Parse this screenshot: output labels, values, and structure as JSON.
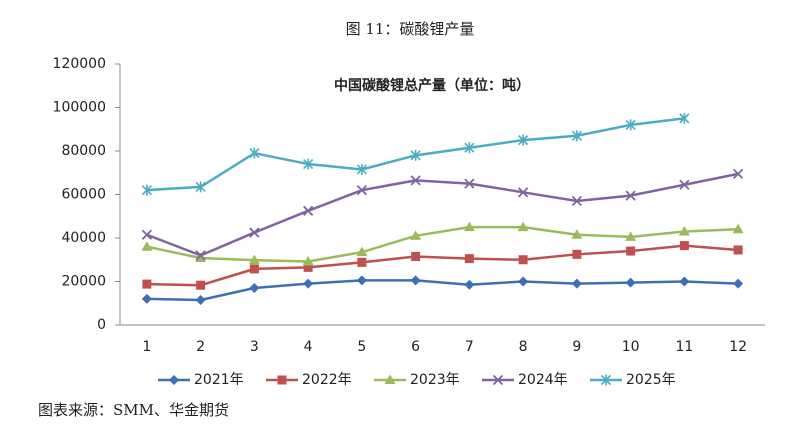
{
  "figure_title": "图 11：碳酸锂产量",
  "source": "图表来源：SMM、华金期货",
  "chart_data": {
    "type": "line",
    "title": "中国碳酸锂总产量（单位：吨）",
    "categories": [
      "1",
      "2",
      "3",
      "4",
      "5",
      "6",
      "7",
      "8",
      "9",
      "10",
      "11",
      "12"
    ],
    "series": [
      {
        "name": "2021年",
        "color": "#3d6fb6",
        "marker": "diamond",
        "values": [
          12000,
          11500,
          17000,
          19000,
          20500,
          20500,
          18500,
          20000,
          19000,
          19500,
          20000,
          19000
        ]
      },
      {
        "name": "2022年",
        "color": "#c0504d",
        "marker": "square",
        "values": [
          18800,
          18300,
          25800,
          26500,
          28800,
          31500,
          30500,
          30000,
          32500,
          34000,
          36500,
          34500
        ]
      },
      {
        "name": "2023年",
        "color": "#9bbb59",
        "marker": "triangle",
        "values": [
          36000,
          30800,
          29800,
          29200,
          33500,
          41000,
          45000,
          45000,
          41500,
          40500,
          43000,
          44000
        ]
      },
      {
        "name": "2024年",
        "color": "#8064a2",
        "marker": "x",
        "values": [
          41500,
          32000,
          42500,
          52500,
          62000,
          66500,
          65000,
          61000,
          57000,
          59500,
          64500,
          69500
        ]
      },
      {
        "name": "2025年",
        "color": "#4bacc6",
        "marker": "star",
        "values": [
          62000,
          63500,
          79000,
          74000,
          71500,
          78000,
          81500,
          85000,
          87000,
          92000,
          95000,
          null
        ]
      }
    ],
    "ylim": [
      0,
      120000
    ],
    "yticks": [
      0,
      20000,
      40000,
      60000,
      80000,
      100000,
      120000
    ],
    "grid": false,
    "legend": "bottom"
  }
}
